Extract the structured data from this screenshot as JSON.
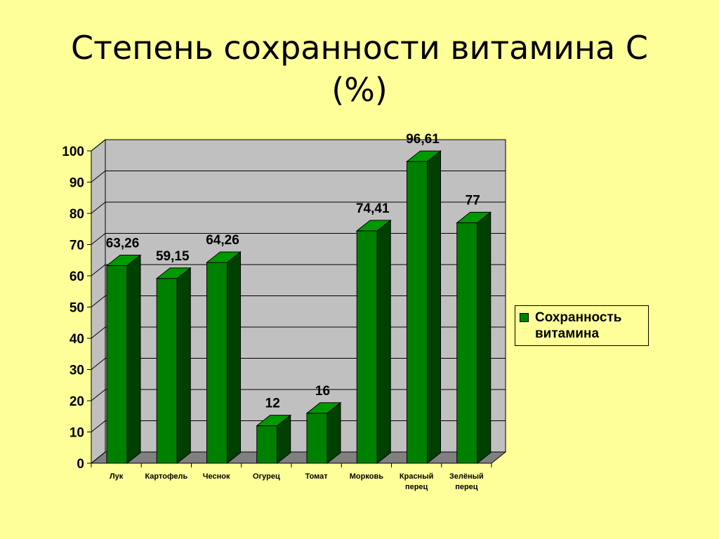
{
  "chart_data": {
    "type": "bar3d",
    "title": "Степень сохранности витамина С (%)",
    "categories": [
      "Лук",
      "Картофель",
      "Чеснок",
      "Огурец",
      "Томат",
      "Морковь",
      "Красный перец",
      "Зелёный перец"
    ],
    "series": [
      {
        "name": "Сохранность витамина",
        "color": "#008000",
        "values": [
          63.26,
          59.15,
          64.26,
          12,
          16,
          74.41,
          96.61,
          77
        ],
        "value_labels": [
          "63,26",
          "59,15",
          "64,26",
          "12",
          "16",
          "74,41",
          "96,61",
          "77"
        ]
      }
    ],
    "ylim": [
      0,
      100
    ],
    "yticks": [
      0,
      10,
      20,
      30,
      40,
      50,
      60,
      70,
      80,
      90,
      100
    ],
    "grid": true,
    "legend": "right"
  }
}
